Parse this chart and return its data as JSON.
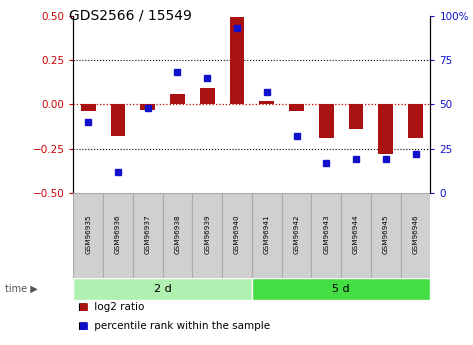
{
  "title": "GDS2566 / 15549",
  "samples": [
    "GSM96935",
    "GSM96936",
    "GSM96937",
    "GSM96938",
    "GSM96939",
    "GSM96940",
    "GSM96941",
    "GSM96942",
    "GSM96943",
    "GSM96944",
    "GSM96945",
    "GSM96946"
  ],
  "log2_ratio": [
    -0.04,
    -0.18,
    -0.03,
    0.06,
    0.09,
    0.49,
    0.02,
    -0.04,
    -0.19,
    -0.14,
    -0.28,
    -0.19
  ],
  "percentile_rank": [
    40,
    12,
    48,
    68,
    65,
    93,
    57,
    32,
    17,
    19,
    19,
    22
  ],
  "group1_label": "2 d",
  "group2_label": "5 d",
  "group1_count": 6,
  "group2_count": 6,
  "bar_color": "#aa1111",
  "dot_color": "#1111cc",
  "ylim_left": [
    -0.5,
    0.5
  ],
  "ylim_right": [
    0,
    100
  ],
  "yticks_left": [
    -0.5,
    -0.25,
    0,
    0.25,
    0.5
  ],
  "yticks_right": [
    0,
    25,
    50,
    75,
    100
  ],
  "hline_color": "#cc0000",
  "dotted_color": "black",
  "bg_color": "#ffffff",
  "group1_bg": "#b0f0b0",
  "group2_bg": "#44dd44",
  "sample_box_gray": "#d0d0d0",
  "sample_box_edge": "#aaaaaa"
}
